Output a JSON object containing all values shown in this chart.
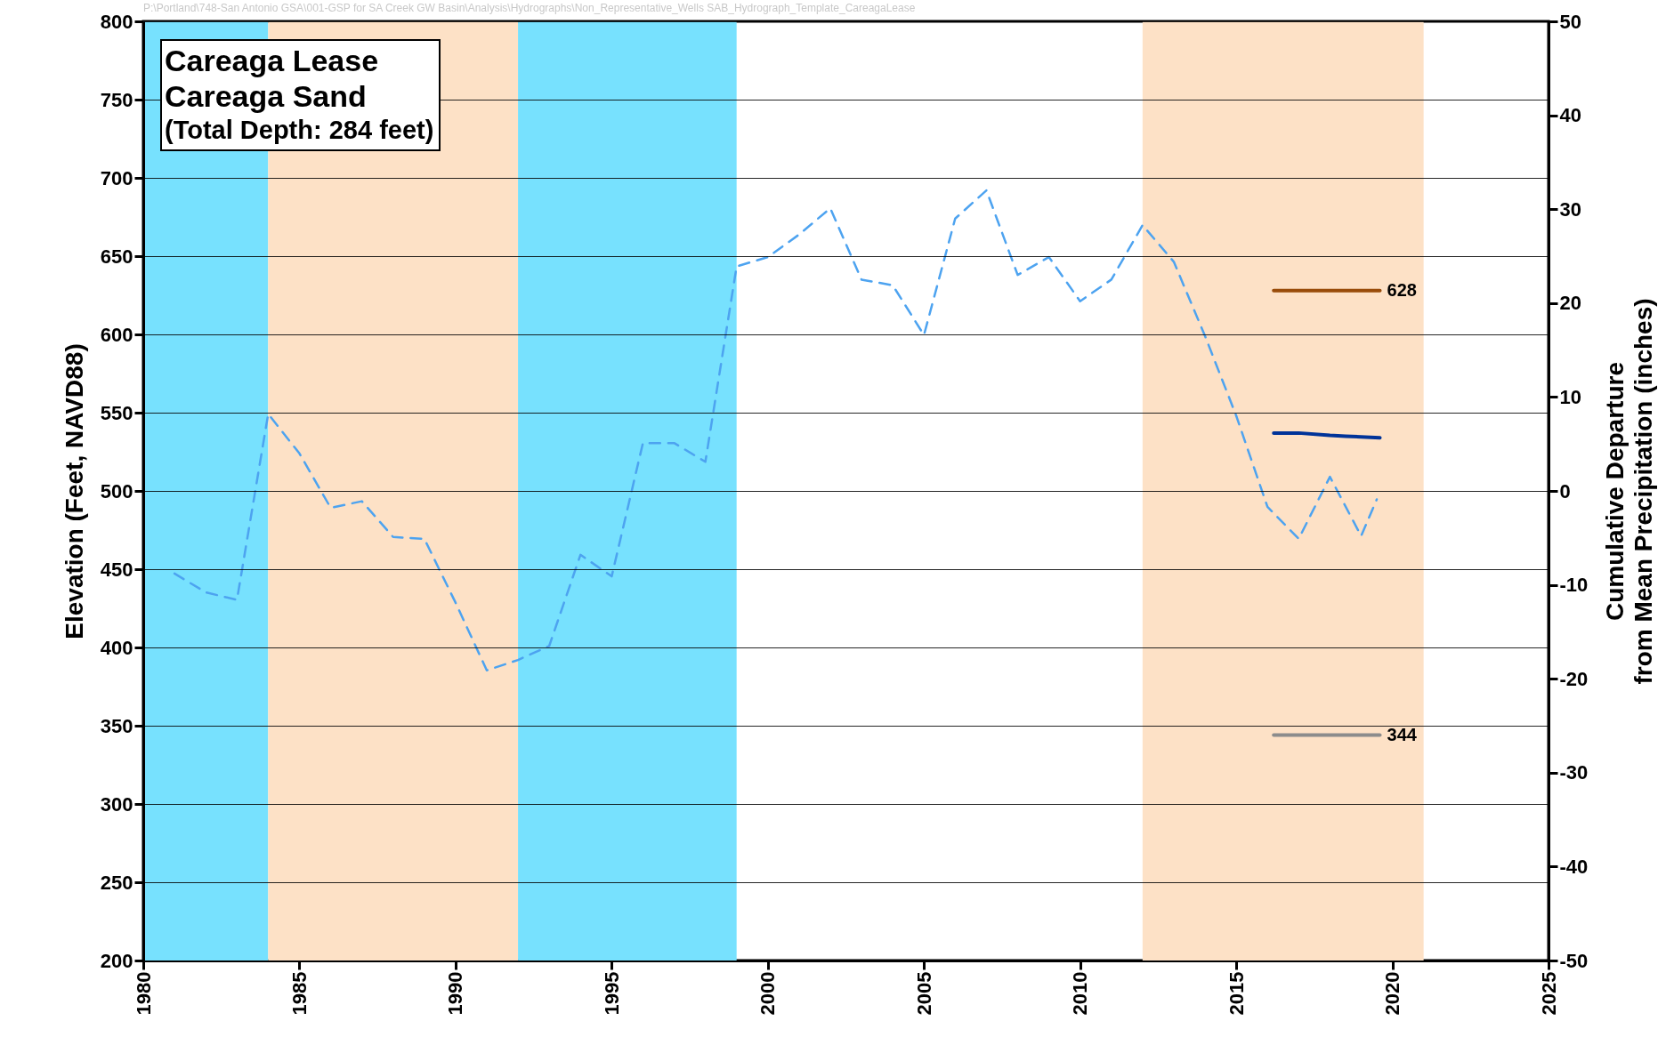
{
  "chart_data": {
    "type": "line",
    "title": "Careaga Lease",
    "subtitle": "Careaga Sand",
    "annotations": [
      "(Total Depth: 284 feet)",
      "P:\\Portland\\748-San Antonio GSA\\001-GSP for SA Creek GW Basin\\Analysis\\Hydrographs\\Non_Representative_Wells SAB_Hydrograph_Template_CareagaLease"
    ],
    "ylabel": "Elevation (Feet, NAVD88)",
    "y2label": "Cumulative Departure\nfrom Mean Precipitation (inches)",
    "xlim": [
      1980,
      2025
    ],
    "xticks": [
      1980,
      1985,
      1990,
      1995,
      2000,
      2005,
      2010,
      2015,
      2020,
      2025
    ],
    "ylim": [
      200,
      800
    ],
    "yticks": [
      200,
      250,
      300,
      350,
      400,
      450,
      500,
      550,
      600,
      650,
      700,
      750,
      800
    ],
    "y2lim": [
      -50,
      50
    ],
    "y2ticks": [
      -50,
      -40,
      -30,
      -20,
      -10,
      0,
      10,
      20,
      30,
      40,
      50
    ],
    "grid": "y",
    "bands": [
      {
        "axis": "x",
        "from": 1980,
        "to": 1984,
        "color": "#77e1fe"
      },
      {
        "axis": "x",
        "from": 1984,
        "to": 1992,
        "color": "#fde1c6"
      },
      {
        "axis": "x",
        "from": 1992,
        "to": 1999,
        "color": "#77e1fe"
      },
      {
        "axis": "x",
        "from": 2012,
        "to": 2021,
        "color": "#fde1c6"
      }
    ],
    "series": [
      {
        "axis": "y2",
        "color": "#4da3f0",
        "line_style": "dashed",
        "x": [
          1981,
          1982,
          1983,
          1984,
          1985,
          1986,
          1987,
          1988,
          1989,
          1990,
          1991,
          1992,
          1993,
          1994,
          1995,
          1996,
          1997,
          1998,
          1999,
          2000,
          2001,
          2002,
          2003,
          2004,
          2005,
          2006,
          2007,
          2008,
          2009,
          2010,
          2011,
          2012,
          2013,
          2014,
          2015,
          2016,
          2017,
          2018,
          2019,
          2019.5
        ],
        "values": [
          -8.8,
          -10.8,
          -11.6,
          8.2,
          4.0,
          -1.8,
          -1.1,
          -4.9,
          -5.1,
          -11.9,
          -19.1,
          -18.0,
          -16.5,
          -6.8,
          -9.1,
          5.1,
          5.1,
          3.1,
          23.9,
          24.9,
          27.3,
          30.1,
          22.5,
          21.9,
          16.6,
          29.0,
          32.0,
          23.0,
          24.9,
          20.2,
          22.5,
          28.3,
          24.4,
          16.5,
          8.0,
          -1.7,
          -5.1,
          1.5,
          -4.8,
          -0.9
        ]
      },
      {
        "color": "#994c0a",
        "line_style": "solid",
        "x": [
          2016.2,
          2019.6
        ],
        "values": [
          628,
          628
        ],
        "value_labels": [
          null,
          "628"
        ]
      },
      {
        "color": "#8c8c8c",
        "line_style": "solid",
        "x": [
          2016.2,
          2019.6
        ],
        "values": [
          344,
          344
        ],
        "value_labels": [
          null,
          "344"
        ]
      },
      {
        "color": "#003399",
        "line_style": "solid",
        "x": [
          2016.2,
          2017,
          2018,
          2018.5,
          2019.6
        ],
        "values": [
          537,
          537,
          535.5,
          535,
          534
        ]
      }
    ]
  }
}
